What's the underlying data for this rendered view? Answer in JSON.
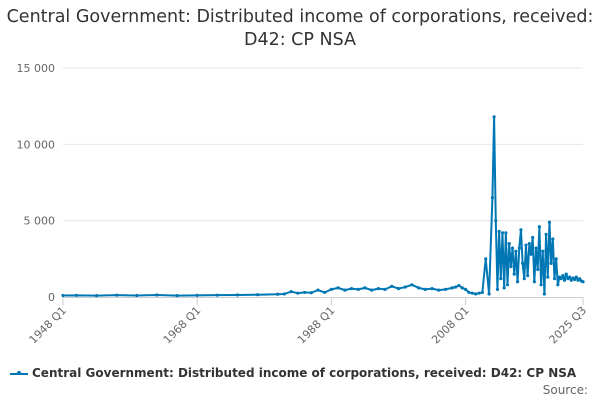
{
  "chart_data": {
    "type": "line",
    "title": "Central Government: Distributed income of corporations, received: D42: CP NSA",
    "xlabel": "",
    "ylabel": "",
    "ylim": [
      0,
      15000
    ],
    "yticks": [
      0,
      5000,
      10000,
      15000
    ],
    "ytick_labels": [
      "0",
      "5 000",
      "10 000",
      "15 000"
    ],
    "xticks": [
      "1948 Q1",
      "1968 Q1",
      "1988 Q1",
      "2008 Q1",
      "2025 Q3"
    ],
    "grid": true,
    "legend_position": "bottom",
    "series_color": "#0077b5",
    "series": [
      {
        "name": "Central Government: Distributed income of corporations, received: D42: CP NSA",
        "x": [
          "1948 Q1",
          "1950 Q1",
          "1953 Q1",
          "1956 Q1",
          "1959 Q1",
          "1962 Q1",
          "1965 Q1",
          "1968 Q1",
          "1971 Q1",
          "1974 Q1",
          "1977 Q1",
          "1980 Q1",
          "1981 Q1",
          "1982 Q1",
          "1983 Q1",
          "1984 Q1",
          "1985 Q1",
          "1986 Q1",
          "1987 Q1",
          "1988 Q1",
          "1989 Q1",
          "1990 Q1",
          "1991 Q1",
          "1992 Q1",
          "1993 Q1",
          "1994 Q1",
          "1995 Q1",
          "1996 Q1",
          "1997 Q1",
          "1998 Q1",
          "1999 Q1",
          "2000 Q1",
          "2001 Q1",
          "2002 Q1",
          "2003 Q1",
          "2004 Q1",
          "2005 Q1",
          "2006 Q1",
          "2006 Q3",
          "2007 Q1",
          "2007 Q3",
          "2008 Q1",
          "2008 Q3",
          "2009 Q1",
          "2009 Q3",
          "2010 Q1",
          "2010 Q3",
          "2011 Q1",
          "2011 Q3",
          "2012 Q1",
          "2012 Q2",
          "2012 Q3",
          "2012 Q4",
          "2013 Q1",
          "2013 Q2",
          "2013 Q3",
          "2013 Q4",
          "2014 Q1",
          "2014 Q2",
          "2014 Q3",
          "2014 Q4",
          "2015 Q1",
          "2015 Q2",
          "2015 Q3",
          "2015 Q4",
          "2016 Q1",
          "2016 Q2",
          "2016 Q3",
          "2016 Q4",
          "2017 Q1",
          "2017 Q2",
          "2017 Q3",
          "2017 Q4",
          "2018 Q1",
          "2018 Q2",
          "2018 Q3",
          "2018 Q4",
          "2019 Q1",
          "2019 Q2",
          "2019 Q3",
          "2019 Q4",
          "2020 Q1",
          "2020 Q2",
          "2020 Q3",
          "2020 Q4",
          "2021 Q1",
          "2021 Q2",
          "2021 Q3",
          "2021 Q4",
          "2022 Q1",
          "2022 Q2",
          "2022 Q3",
          "2022 Q4",
          "2023 Q1",
          "2023 Q2",
          "2023 Q3",
          "2023 Q4",
          "2024 Q1",
          "2024 Q2",
          "2024 Q3",
          "2024 Q4",
          "2025 Q1",
          "2025 Q2",
          "2025 Q3"
        ],
        "values": [
          100,
          110,
          90,
          120,
          100,
          130,
          90,
          110,
          120,
          130,
          150,
          180,
          200,
          350,
          250,
          300,
          280,
          450,
          300,
          500,
          600,
          450,
          550,
          500,
          600,
          450,
          550,
          500,
          700,
          550,
          650,
          800,
          600,
          500,
          550,
          450,
          500,
          600,
          650,
          750,
          600,
          500,
          300,
          250,
          200,
          250,
          300,
          2500,
          200,
          6500,
          11800,
          5000,
          500,
          4300,
          1200,
          4200,
          600,
          4200,
          800,
          3500,
          2000,
          3200,
          1500,
          3000,
          1000,
          3200,
          4400,
          2200,
          1200,
          3400,
          1400,
          3500,
          2800,
          3900,
          1000,
          3200,
          1800,
          4600,
          800,
          3000,
          200,
          4100,
          1300,
          4900,
          2200,
          3800,
          1200,
          2500,
          800,
          1300,
          1200,
          1400,
          1100,
          1500,
          1200,
          1300,
          1100,
          1250,
          1150,
          1300,
          1100,
          1200,
          1050,
          1000
        ]
      }
    ],
    "source_label": "Source:"
  }
}
